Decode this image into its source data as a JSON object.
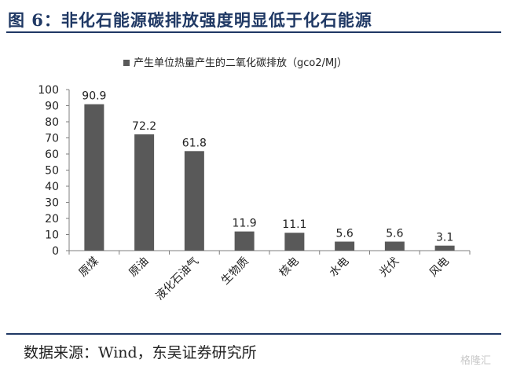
{
  "header": {
    "title": "图 6：非化石能源碳排放强度明显低于化石能源"
  },
  "footer": {
    "source": "数据来源：Wind，东吴证券研究所",
    "watermark": "格隆汇"
  },
  "chart_data": {
    "type": "bar",
    "categories": [
      "原煤",
      "原油",
      "液化石油气",
      "生物质",
      "核电",
      "水电",
      "光伏",
      "风电"
    ],
    "series": [
      {
        "name": "产生单位热量产生的二氧化碳排放（gco2/MJ）",
        "values": [
          90.9,
          72.2,
          61.8,
          11.9,
          11.1,
          5.6,
          5.6,
          3.1
        ],
        "labels": [
          "90.9",
          "72.2",
          "61.8",
          "11.9",
          "11.1",
          "5.6",
          "5.6",
          "3.1"
        ]
      }
    ],
    "ylim": [
      0,
      100
    ],
    "yticks": [
      0,
      10,
      20,
      30,
      40,
      50,
      60,
      70,
      80,
      90,
      100
    ],
    "legend_position": "top",
    "grid": false,
    "colors": {
      "bar": "#595959",
      "axis": "#7f7f7f",
      "text": "#222222"
    }
  }
}
